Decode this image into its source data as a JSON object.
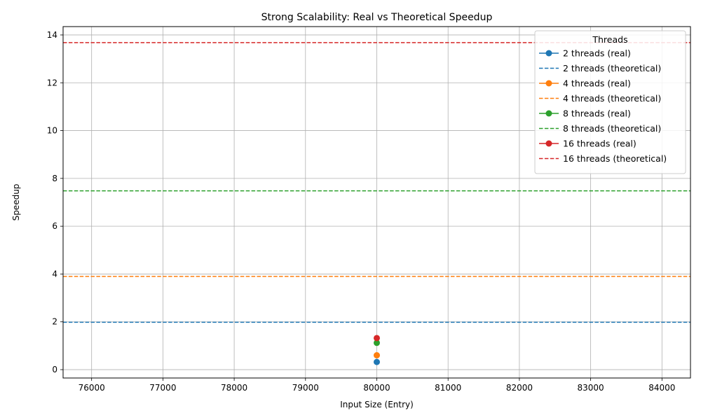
{
  "chart_data": {
    "type": "line",
    "title": "Strong Scalability: Real vs Theoretical Speedup",
    "xlabel": "Input Size (Entry)",
    "ylabel": "Speedup",
    "xlim": [
      75600,
      84400
    ],
    "ylim": [
      -0.35,
      14.35
    ],
    "xticks": [
      76000,
      77000,
      78000,
      79000,
      80000,
      81000,
      82000,
      83000,
      84000
    ],
    "yticks": [
      0,
      2,
      4,
      6,
      8,
      10,
      12,
      14
    ],
    "grid": true,
    "legend": {
      "title": "Threads",
      "placement": "top-right"
    },
    "series": [
      {
        "name": "2 threads (real)",
        "kind": "real",
        "color": "#1f77b4",
        "x": [
          80000
        ],
        "y": [
          0.32
        ]
      },
      {
        "name": "2 threads (theoretical)",
        "kind": "theoretical",
        "color": "#1f77b4",
        "y": 1.98
      },
      {
        "name": "4 threads (real)",
        "kind": "real",
        "color": "#ff7f0e",
        "x": [
          80000
        ],
        "y": [
          0.6
        ]
      },
      {
        "name": "4 threads (theoretical)",
        "kind": "theoretical",
        "color": "#ff7f0e",
        "y": 3.9
      },
      {
        "name": "8 threads (real)",
        "kind": "real",
        "color": "#2ca02c",
        "x": [
          80000
        ],
        "y": [
          1.12
        ]
      },
      {
        "name": "8 threads (theoretical)",
        "kind": "theoretical",
        "color": "#2ca02c",
        "y": 7.48
      },
      {
        "name": "16 threads (real)",
        "kind": "real",
        "color": "#d62728",
        "x": [
          80000
        ],
        "y": [
          1.32
        ]
      },
      {
        "name": "16 threads (theoretical)",
        "kind": "theoretical",
        "color": "#d62728",
        "y": 13.68
      }
    ]
  }
}
